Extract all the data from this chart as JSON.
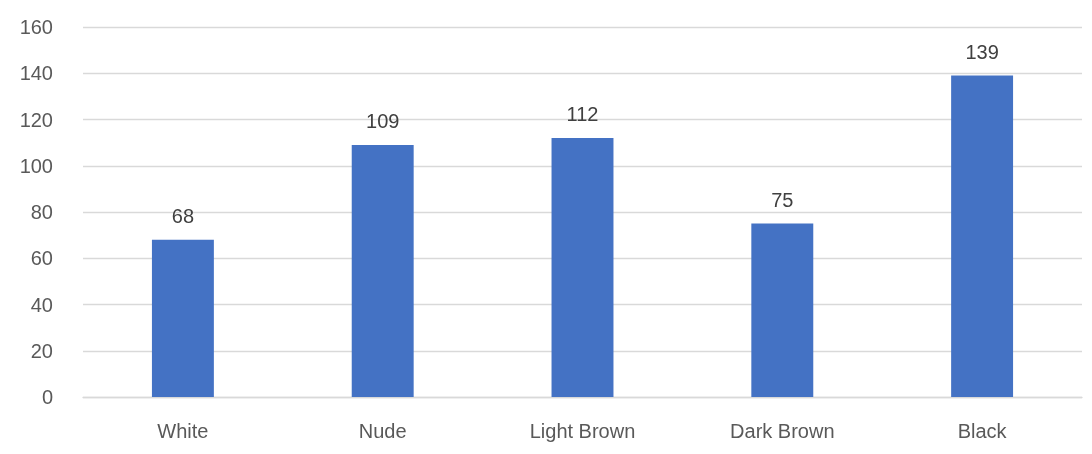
{
  "chart_data": {
    "type": "bar",
    "categories": [
      "White",
      "Nude",
      "Light Brown",
      "Dark Brown",
      "Black"
    ],
    "values": [
      68,
      109,
      112,
      75,
      139
    ],
    "color": "#4472c4",
    "ylim": [
      0,
      160
    ],
    "yticks": [
      0,
      20,
      40,
      60,
      80,
      100,
      120,
      140,
      160
    ],
    "grid": "y",
    "data_labels": true
  }
}
